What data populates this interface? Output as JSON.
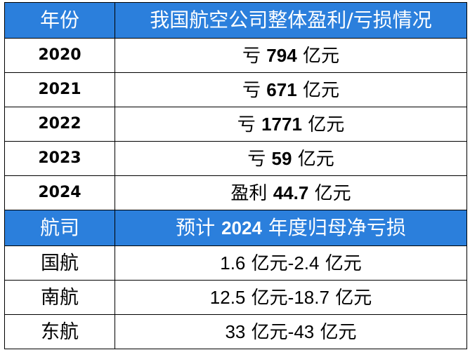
{
  "header1": {
    "col1": "年份",
    "col2": "我国航空公司整体盈利/亏损情况"
  },
  "years": [
    {
      "year": "2020",
      "prefix": "亏",
      "amount": "794",
      "unit": "亿元"
    },
    {
      "year": "2021",
      "prefix": "亏",
      "amount": "671",
      "unit": "亿元"
    },
    {
      "year": "2022",
      "prefix": "亏",
      "amount": "1771",
      "unit": "亿元"
    },
    {
      "year": "2023",
      "prefix": "亏",
      "amount": "59",
      "unit": "亿元"
    },
    {
      "year": "2024",
      "prefix": "盈利",
      "amount": "44.7",
      "unit": "亿元"
    }
  ],
  "header2": {
    "col1": "航司",
    "col2_prefix": "预计",
    "col2_year": "2024",
    "col2_suffix": "年度归母净亏损"
  },
  "airlines": [
    {
      "name": "国航",
      "low": "1.6",
      "high": "-2.4",
      "unit": "亿元"
    },
    {
      "name": "南航",
      "low": "12.5",
      "high": "-18.7",
      "unit": "亿元"
    },
    {
      "name": "东航",
      "low": "33",
      "high": "-43",
      "unit": "亿元"
    }
  ]
}
